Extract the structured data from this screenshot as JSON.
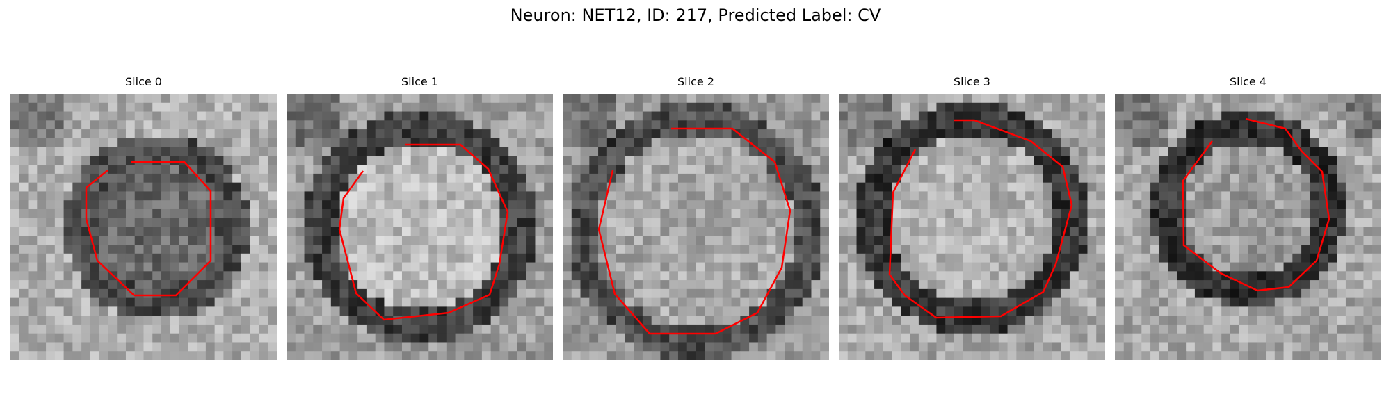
{
  "figure": {
    "title": "Neuron: NET12, ID: 217, Predicted Label: CV"
  },
  "panels": [
    {
      "title": "Slice 0"
    },
    {
      "title": "Slice 1"
    },
    {
      "title": "Slice 2"
    },
    {
      "title": "Slice 3"
    },
    {
      "title": "Slice 4"
    }
  ],
  "colors": {
    "contour": "#ff0000"
  }
}
